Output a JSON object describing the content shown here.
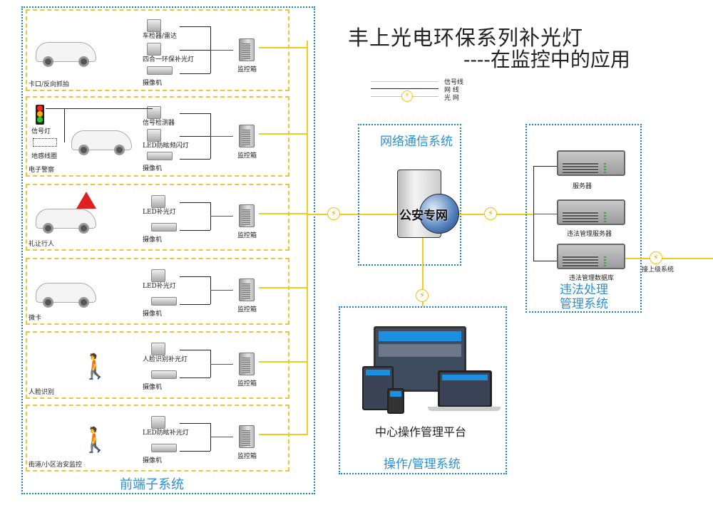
{
  "title": {
    "line1": "丰上光电环保系列补光灯",
    "line2": "----在监控中的应用"
  },
  "legend": [
    {
      "label": "信号线",
      "color": "#cccccc"
    },
    {
      "label": "网  线",
      "color": "#222222"
    },
    {
      "label": "光  网",
      "color": "#f2cc1c"
    }
  ],
  "front_end": {
    "title": "前端子系统",
    "cabinet_label": "监控箱",
    "panels": [
      {
        "scene": "卡口/反向抓拍",
        "icon": "car",
        "devices": [
          "车检器/雷达",
          "四合一环保补光灯",
          "摄像机"
        ]
      },
      {
        "scene": "电子警察",
        "icon": "car",
        "extras": [
          "信号灯",
          "地感线圈"
        ],
        "devices": [
          "信号检测器",
          "LED防眩频闪灯",
          "摄像机"
        ]
      },
      {
        "scene": "礼让行人",
        "icon": "car-with-crosswalk-sign",
        "devices": [
          "LED补光灯",
          "摄像机"
        ]
      },
      {
        "scene": "微卡",
        "icon": "car",
        "devices": [
          "LED补光灯",
          "摄像机"
        ]
      },
      {
        "scene": "人脸识别",
        "icon": "pedestrian",
        "devices": [
          "人脸识别补光灯",
          "摄像机"
        ]
      },
      {
        "scene": "街道/小区治安监控",
        "icon": "pedestrian",
        "devices": [
          "LED防眩补光灯",
          "摄像机"
        ]
      }
    ]
  },
  "network": {
    "title": "网络通信系统",
    "server_label": "公安专网"
  },
  "violation": {
    "title_line1": "违法处理",
    "title_line2": "管理系统",
    "servers": [
      "服务器",
      "违法管理服务器",
      "违法管理数据库"
    ],
    "uplink": "接上级系统"
  },
  "operation": {
    "platform": "中心操作管理平台",
    "title": "操作/管理系统"
  },
  "colors": {
    "accent_blue": "#2b8fd8",
    "fiber_yellow": "#f2cc1c",
    "panel_border": "#e8c83a"
  }
}
